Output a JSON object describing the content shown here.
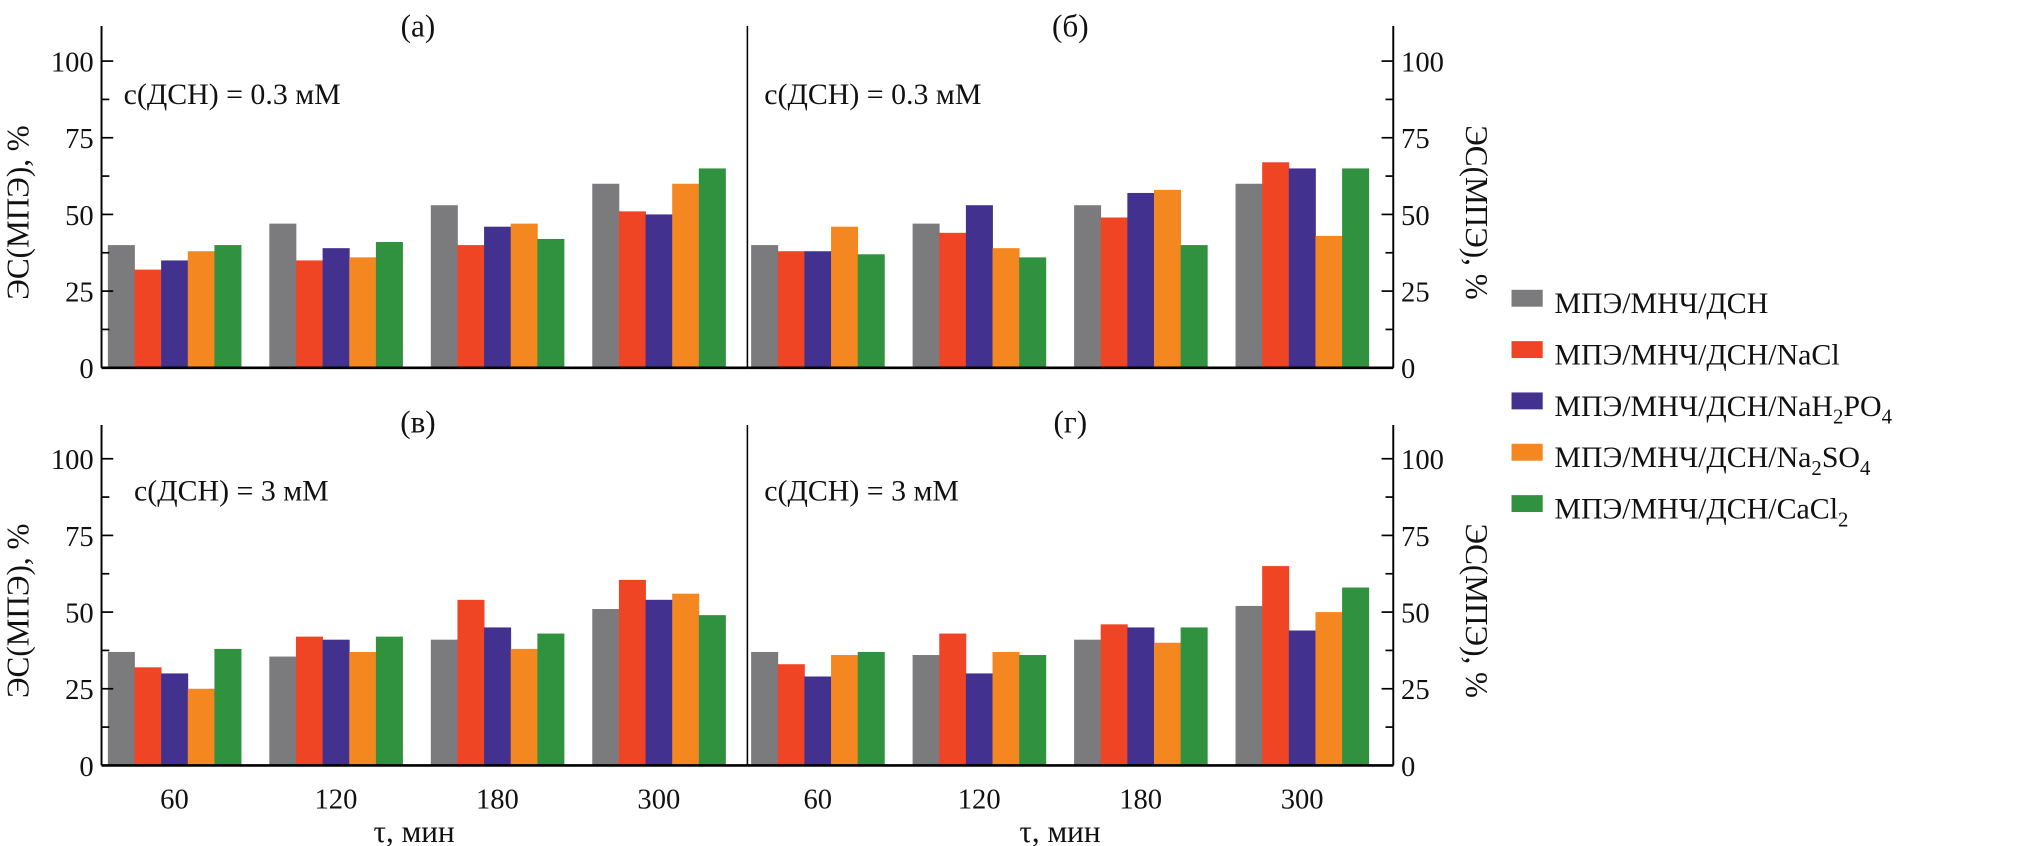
{
  "chart_data": {
    "type": "bar",
    "categories": [
      "60",
      "120",
      "180",
      "300"
    ],
    "xlabel": "τ, мин",
    "ylabel": "ЭС(МПЭ), %",
    "ylim": [
      0,
      110
    ],
    "yticks": [
      "0",
      "25",
      "50",
      "75",
      "100"
    ],
    "grid": false,
    "legend_placement": "right",
    "legend": [
      {
        "color": "#7b7b7d",
        "parts": [
          [
            "МПЭ/МНЧ/ДСН",
            ""
          ]
        ]
      },
      {
        "color": "#ef4524",
        "parts": [
          [
            "МПЭ/МНЧ/ДСН/NaCl",
            ""
          ]
        ]
      },
      {
        "color": "#433190",
        "parts": [
          [
            "МПЭ/МНЧ/ДСН/NaH",
            ""
          ],
          [
            "2",
            "sub"
          ],
          [
            "PO",
            ""
          ],
          [
            "4",
            "sub"
          ]
        ]
      },
      {
        "color": "#f58720",
        "parts": [
          [
            "МПЭ/МНЧ/ДСН/Na",
            ""
          ],
          [
            "2",
            "sub"
          ],
          [
            "SO",
            ""
          ],
          [
            "4",
            "sub"
          ]
        ]
      },
      {
        "color": "#30923f",
        "parts": [
          [
            "МПЭ/МНЧ/ДСН/CaCl",
            ""
          ],
          [
            "2",
            "sub"
          ]
        ]
      }
    ],
    "panels": [
      {
        "label": "(а)",
        "annotation": "c(ДСН) = 0.3 мМ",
        "series": [
          {
            "values": [
              40,
              47,
              53,
              60
            ]
          },
          {
            "values": [
              32,
              35,
              40,
              51
            ]
          },
          {
            "values": [
              35,
              39,
              46,
              50
            ]
          },
          {
            "values": [
              38,
              36,
              47,
              60
            ]
          },
          {
            "values": [
              40,
              41,
              42,
              65
            ]
          }
        ]
      },
      {
        "label": "(б)",
        "annotation": "c(ДСН) = 0.3 мМ",
        "series": [
          {
            "values": [
              40,
              47,
              53,
              60
            ]
          },
          {
            "values": [
              38,
              44,
              49,
              67
            ]
          },
          {
            "values": [
              38,
              53,
              57,
              65
            ]
          },
          {
            "values": [
              46,
              39,
              58,
              43
            ]
          },
          {
            "values": [
              37,
              36,
              40,
              65
            ]
          }
        ]
      },
      {
        "label": "(в)",
        "annotation": "c(ДСН) = 3 мМ",
        "series": [
          {
            "values": [
              37,
              35.5,
              41,
              51
            ]
          },
          {
            "values": [
              32,
              42,
              54,
              60.5
            ]
          },
          {
            "values": [
              30,
              41,
              45,
              54
            ]
          },
          {
            "values": [
              25,
              37,
              38,
              56
            ]
          },
          {
            "values": [
              38,
              42,
              43,
              49
            ]
          }
        ]
      },
      {
        "label": "(г)",
        "annotation": "c(ДСН) = 3 мМ",
        "series": [
          {
            "values": [
              37,
              36,
              41,
              52
            ]
          },
          {
            "values": [
              33,
              43,
              46,
              65
            ]
          },
          {
            "values": [
              29,
              30,
              45,
              44
            ]
          },
          {
            "values": [
              36,
              37,
              40,
              50
            ]
          },
          {
            "values": [
              37,
              36,
              45,
              58
            ]
          }
        ]
      }
    ]
  }
}
